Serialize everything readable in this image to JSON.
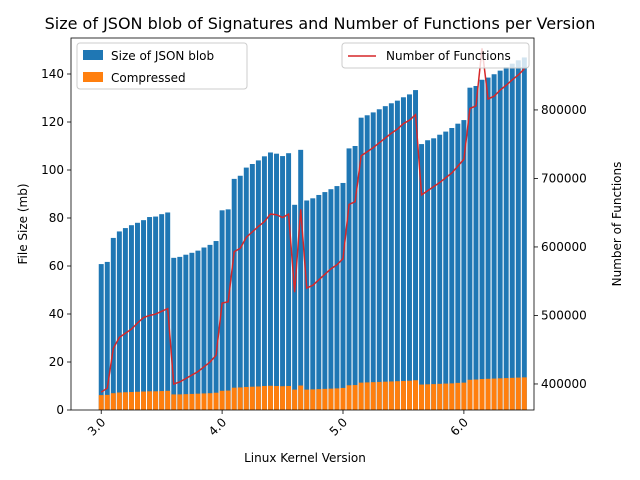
{
  "chart_data": {
    "type": "bar",
    "title": "Size of JSON blob of Signatures and Number of Functions per Version",
    "xlabel": "Linux Kernel Version",
    "ylabel": "File Size (mb)",
    "y2label": "Number of Functions",
    "xlim": [
      2.75,
      6.58
    ],
    "ylim": [
      0,
      155
    ],
    "y2lim": [
      362000,
      905000
    ],
    "x_ticks": [
      3.0,
      4.0,
      5.0,
      6.0
    ],
    "x_tick_labels": [
      "3.0",
      "4.0",
      "5.0",
      "6.0"
    ],
    "y_ticks": [
      0,
      20,
      40,
      60,
      80,
      100,
      120,
      140
    ],
    "y_tick_labels": [
      "0",
      "20",
      "40",
      "60",
      "80",
      "100",
      "120",
      "140"
    ],
    "y2_ticks": [
      400000,
      500000,
      600000,
      700000,
      800000
    ],
    "y2_tick_labels": [
      "400000",
      "500000",
      "600000",
      "700000",
      "800000"
    ],
    "legend_left": [
      "Size of JSON blob",
      "Compressed"
    ],
    "legend_right": [
      "Number of Functions"
    ],
    "colors": {
      "json": "#1f77b4",
      "compressed": "#ff7f0e",
      "functions": "#d62728"
    },
    "x": [
      3.0,
      3.05,
      3.1,
      3.15,
      3.2,
      3.25,
      3.3,
      3.35,
      3.4,
      3.45,
      3.5,
      3.55,
      3.6,
      3.65,
      3.7,
      3.75,
      3.8,
      3.85,
      3.9,
      3.95,
      4.0,
      4.05,
      4.1,
      4.15,
      4.2,
      4.25,
      4.3,
      4.35,
      4.4,
      4.45,
      4.5,
      4.55,
      4.6,
      4.65,
      4.7,
      4.75,
      4.8,
      4.85,
      4.9,
      4.95,
      5.0,
      5.05,
      5.1,
      5.15,
      5.2,
      5.25,
      5.3,
      5.35,
      5.4,
      5.45,
      5.5,
      5.55,
      5.6,
      5.65,
      5.7,
      5.75,
      5.8,
      5.85,
      5.9,
      5.95,
      6.0,
      6.05,
      6.1,
      6.15,
      6.2,
      6.25,
      6.3,
      6.35,
      6.4,
      6.45,
      6.5
    ],
    "series": [
      {
        "name": "Size of JSON blob",
        "values": [
          60.8,
          61.7,
          71.7,
          74.4,
          75.8,
          77.0,
          78.0,
          79.1,
          80.4,
          80.6,
          81.6,
          82.3,
          63.4,
          63.8,
          64.7,
          65.5,
          66.4,
          67.7,
          68.8,
          70.4,
          83.2,
          83.6,
          96.3,
          97.6,
          101.0,
          102.5,
          104.0,
          105.7,
          107.3,
          106.8,
          105.8,
          107.0,
          85.5,
          108.4,
          87.3,
          88.2,
          89.6,
          90.8,
          92.0,
          93.3,
          94.6,
          109.0,
          110.0,
          121.8,
          122.8,
          124.0,
          125.3,
          126.6,
          127.8,
          128.9,
          130.3,
          131.5,
          133.3,
          110.8,
          112.4,
          113.2,
          114.7,
          116.0,
          117.5,
          119.3,
          120.8,
          134.3,
          135.0,
          137.6,
          138.5,
          139.9,
          141.4,
          142.9,
          144.3,
          145.7,
          146.9
        ]
      },
      {
        "name": "Compressed",
        "values": [
          6.2,
          6.3,
          7.0,
          7.3,
          7.4,
          7.5,
          7.6,
          7.7,
          7.8,
          7.8,
          7.9,
          8.0,
          6.5,
          6.5,
          6.6,
          6.7,
          6.8,
          6.9,
          7.0,
          7.2,
          8.0,
          8.1,
          9.3,
          9.4,
          9.6,
          9.7,
          9.8,
          10.0,
          10.1,
          10.0,
          9.9,
          10.0,
          8.5,
          10.2,
          8.5,
          8.6,
          8.7,
          8.8,
          8.9,
          9.0,
          9.2,
          10.3,
          10.4,
          11.4,
          11.5,
          11.6,
          11.7,
          11.8,
          11.9,
          12.0,
          12.1,
          12.2,
          12.4,
          10.6,
          10.7,
          10.8,
          10.9,
          11.0,
          11.1,
          11.3,
          11.4,
          12.6,
          12.7,
          12.9,
          13.0,
          13.1,
          13.2,
          13.3,
          13.4,
          13.5,
          13.6
        ]
      },
      {
        "name": "Number of Functions",
        "values": [
          388000,
          394000,
          452000,
          468000,
          474000,
          480000,
          489000,
          497000,
          500000,
          502000,
          506000,
          510000,
          400000,
          403000,
          408000,
          413000,
          418000,
          425000,
          432000,
          442000,
          518000,
          520000,
          593000,
          598000,
          614000,
          622000,
          630000,
          637000,
          648000,
          647000,
          643000,
          648000,
          534000,
          655000,
          540000,
          544000,
          552000,
          560000,
          568000,
          574000,
          583000,
          662000,
          666000,
          733000,
          739000,
          745000,
          752000,
          759000,
          766000,
          772000,
          780000,
          785000,
          793000,
          676000,
          682000,
          688000,
          694000,
          701000,
          708000,
          718000,
          728000,
          802000,
          806000,
          890000,
          816000,
          820000,
          829000,
          836000,
          844000,
          851000,
          860000
        ]
      }
    ]
  }
}
